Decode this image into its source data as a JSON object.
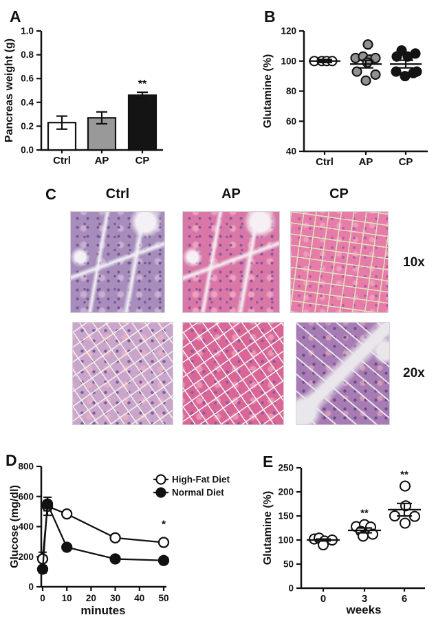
{
  "colors": {
    "background": "#ffffff",
    "ink": "#111111"
  },
  "histology": {
    "panel_label": "C",
    "column_headers": [
      "Ctrl",
      "AP",
      "CP"
    ],
    "row_labels": [
      "10x",
      "20x"
    ],
    "tiles": [
      {
        "name": "ctrl-10x",
        "variant": "branched",
        "base": "#a78dbc",
        "nuclei": "#77578f",
        "blob": "#c9aed2",
        "streak": "#f3f1f6"
      },
      {
        "name": "ap-10x",
        "variant": "branched",
        "base": "#d978a6",
        "nuclei": "#8a55a0",
        "blob": "#eda0bf",
        "streak": "#f6eff3"
      },
      {
        "name": "cp-10x",
        "variant": "net",
        "base": "#e87ca9",
        "nuclei": "#a862a2",
        "blob": "#ef9dbd",
        "streak": "#dfe0bd"
      },
      {
        "name": "ctrl-20x",
        "variant": "cells",
        "base": "#c9a5cb",
        "nuclei": "#7d5c97",
        "blob": "#e2aec7",
        "streak": "#f2efe9"
      },
      {
        "name": "ap-20x",
        "variant": "cells",
        "base": "#d96697",
        "nuclei": "#8f58a0",
        "blob": "#ea93b5",
        "streak": "#f6f1ef"
      },
      {
        "name": "cp-20x",
        "variant": "lobular",
        "base": "#a77bb3",
        "nuclei": "#6e4d88",
        "blob": "#d09ab9",
        "streak": "#e9e7ec"
      }
    ]
  },
  "chart_data": [
    {
      "id": "A",
      "panel_label": "A",
      "type": "bar",
      "ylabel": "Pancreas weight (g)",
      "ylim": [
        0,
        1.0
      ],
      "yticks": [
        "0.0",
        "0.2",
        "0.4",
        "0.6",
        "0.8",
        "1.0"
      ],
      "categories": [
        "Ctrl",
        "AP",
        "CP"
      ],
      "values": [
        0.23,
        0.27,
        0.46
      ],
      "errors": [
        0.055,
        0.05,
        0.025
      ],
      "bar_fills": [
        "#ffffff",
        "#999999",
        "#141414"
      ],
      "sig_labels": [
        "",
        "",
        "**"
      ]
    },
    {
      "id": "B",
      "panel_label": "B",
      "type": "dotplot",
      "ylabel": "Glutamine (%)",
      "ylim": [
        40,
        120
      ],
      "yticks": [
        "40",
        "60",
        "80",
        "100",
        "120"
      ],
      "groups": [
        {
          "label": "Ctrl",
          "fill": "#ffffff",
          "mean": 100,
          "sem": 1,
          "sig": "",
          "points": [
            [
              -15,
              100
            ],
            [
              -4,
              100
            ],
            [
              3,
              100
            ],
            [
              11,
              100
            ]
          ]
        },
        {
          "label": "AP",
          "fill": "#909090",
          "mean": 98,
          "sem": 2.5,
          "sig": "",
          "points": [
            [
              3,
              111
            ],
            [
              -15,
              102
            ],
            [
              -4,
              103
            ],
            [
              6,
              101
            ],
            [
              14,
              102
            ],
            [
              2,
              99
            ],
            [
              -13,
              93
            ],
            [
              0,
              87
            ],
            [
              14,
              91
            ]
          ]
        },
        {
          "label": "CP",
          "fill": "#141414",
          "mean": 98,
          "sem": 2.5,
          "sig": "",
          "points": [
            [
              -6,
              107
            ],
            [
              14,
              105
            ],
            [
              -13,
              103
            ],
            [
              3,
              103
            ],
            [
              -14,
              93
            ],
            [
              -1,
              90
            ],
            [
              11,
              92
            ],
            [
              16,
              93
            ]
          ]
        }
      ]
    },
    {
      "id": "D",
      "panel_label": "D",
      "type": "line",
      "ylabel": "Glucose (mg/dl)",
      "xlabel": "minutes",
      "ylim": [
        0,
        800
      ],
      "yticks": [
        "0",
        "200",
        "400",
        "600",
        "800"
      ],
      "xlim": [
        0,
        50
      ],
      "xticks": [
        "0",
        "10",
        "20",
        "30",
        "40",
        "50"
      ],
      "series": [
        {
          "name": "High-Fat Diet",
          "marker": "open",
          "x": [
            0,
            2,
            10,
            30,
            50
          ],
          "y": [
            185,
            535,
            484,
            325,
            295
          ],
          "err": [
            45,
            60,
            0,
            15,
            12
          ]
        },
        {
          "name": "Normal Diet",
          "marker": "filled",
          "x": [
            0,
            2,
            10,
            30,
            50
          ],
          "y": [
            117,
            550,
            263,
            185,
            175
          ],
          "err": [
            25,
            45,
            0,
            0,
            0
          ]
        }
      ],
      "annotations": [
        {
          "x": 50,
          "y": 390,
          "text": "*"
        }
      ],
      "legend_position": "top-right"
    },
    {
      "id": "E",
      "panel_label": "E",
      "type": "dotplot",
      "ylabel": "Glutamine (%)",
      "xlabel": "weeks",
      "ylim": [
        0,
        250
      ],
      "yticks": [
        "0",
        "50",
        "100",
        "150",
        "200",
        "250"
      ],
      "groups": [
        {
          "label": "0",
          "fill": "#ffffff",
          "mean": 100,
          "sem": 2,
          "sig": "",
          "points": [
            [
              -13,
              102
            ],
            [
              -6,
              104
            ],
            [
              2,
              98
            ],
            [
              13,
              100
            ],
            [
              0,
              90
            ]
          ]
        },
        {
          "label": "3",
          "fill": "#ffffff",
          "mean": 120,
          "sem": 5,
          "sig": "**",
          "points": [
            [
              -12,
              128
            ],
            [
              0,
              132
            ],
            [
              9,
              127
            ],
            [
              -5,
              118
            ],
            [
              -2,
              108
            ],
            [
              12,
              112
            ]
          ]
        },
        {
          "label": "6",
          "fill": "#ffffff",
          "mean": 163,
          "sem": 13,
          "sig": "**",
          "points": [
            [
              1,
              212
            ],
            [
              2,
              171
            ],
            [
              -14,
              150
            ],
            [
              15,
              149
            ],
            [
              1,
              135
            ]
          ]
        }
      ]
    }
  ]
}
